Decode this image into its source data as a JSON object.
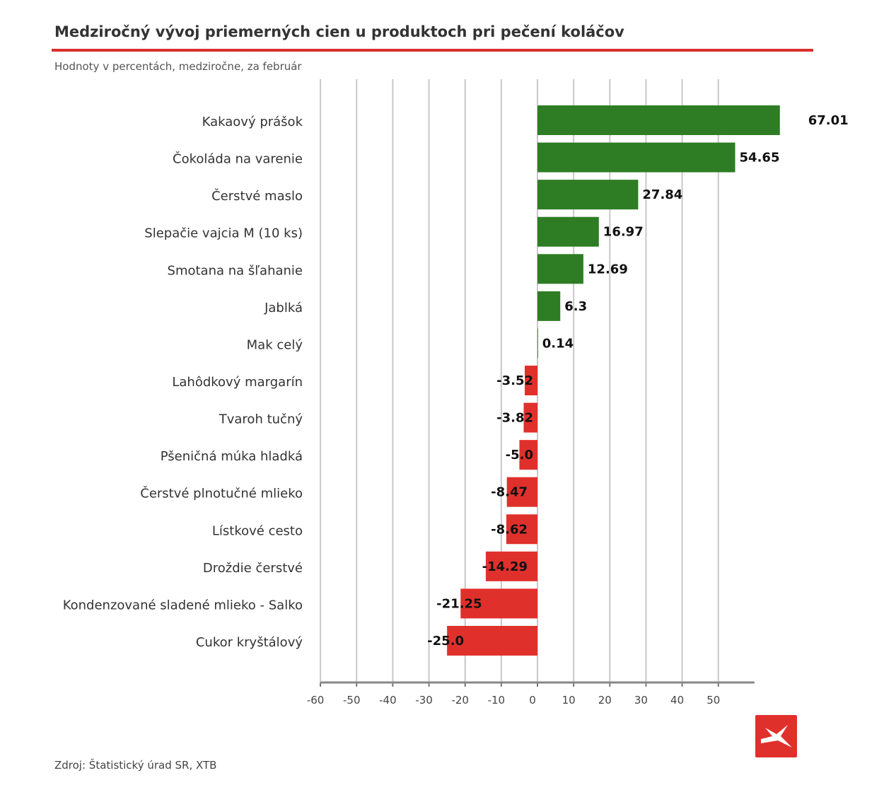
{
  "chart_data": {
    "type": "bar",
    "orientation": "horizontal",
    "title": "Medziročný vývoj priemerných cien u produktoch pri pečení koláčov",
    "subtitle": "Hodnoty v percentách, medziročne, za február",
    "source": "Zdroj: Štatistický úrad SR, XTB",
    "categories": [
      "Kakaový prášok",
      "Čokoláda na varenie",
      "Čerstvé maslo",
      "Slepačie vajcia M (10 ks)",
      "Smotana na šľahanie",
      "Jablká",
      "Mak celý",
      "Lahôdkový margarín",
      "Tvaroh tučný",
      "Pšeničná múka hladká",
      "Čerstvé plnotučné mlieko",
      "Lístkové cesto",
      "Droždie čerstvé",
      "Kondenzované sladené mlieko - Salko",
      "Cukor kryštálový"
    ],
    "values": [
      67.01,
      54.65,
      27.84,
      16.97,
      12.69,
      6.3,
      0.14,
      -3.52,
      -3.82,
      -5.0,
      -8.47,
      -8.62,
      -14.29,
      -21.25,
      -25.0
    ],
    "value_labels": [
      "67.01",
      "54.65",
      "27.84",
      "16.97",
      "12.69",
      "6.3",
      "0.14",
      "-3.52",
      "-3.82",
      "-5.0",
      "-8.47",
      "-8.62",
      "-14.29",
      "-21.25",
      "-25.0"
    ],
    "xticks": [
      "-60",
      "-50",
      "-40",
      "-30",
      "-20",
      "-10",
      "0",
      "10",
      "20",
      "30",
      "40",
      "50"
    ],
    "xlim": [
      -60,
      60
    ],
    "grid": "vertical",
    "colors": {
      "positive": "#2e7d24",
      "negative": "#e0302c",
      "accent": "#d9302c"
    },
    "logo": "XTB"
  }
}
